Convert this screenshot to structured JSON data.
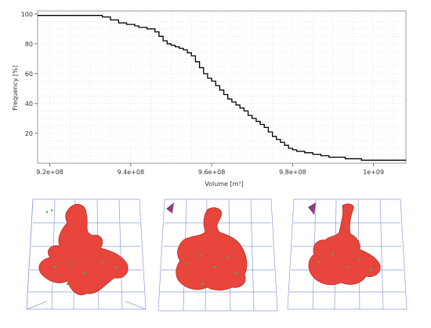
{
  "chart_data": {
    "type": "line",
    "line_style": "step",
    "ylabel": "Frequency [%]",
    "xlabel": "Volume [m³]",
    "x_ticks": [
      "9.2e+08",
      "9.4e+08",
      "9.6e+08",
      "9.8e+08",
      "1e+09"
    ],
    "x_tick_values": [
      920000000,
      940000000,
      960000000,
      980000000,
      1000000000
    ],
    "y_ticks": [
      "20",
      "40",
      "60",
      "80",
      "100"
    ],
    "y_tick_values": [
      20,
      40,
      60,
      80,
      100
    ],
    "xlim": [
      917000000,
      1008000000
    ],
    "ylim": [
      0,
      102
    ],
    "grid": true,
    "series": [
      {
        "color": "#000000",
        "x": [
          917000000,
          933000000,
          935000000,
          937000000,
          939000000,
          941000000,
          942000000,
          944000000,
          946000000,
          947000000,
          948000000,
          949000000,
          950000000,
          951000000,
          952000000,
          953000000,
          954000000,
          955000000,
          956000000,
          957000000,
          958000000,
          959000000,
          960000000,
          961000000,
          962000000,
          963000000,
          964000000,
          965000000,
          966000000,
          967000000,
          968000000,
          969000000,
          970000000,
          971000000,
          972000000,
          973000000,
          974000000,
          975000000,
          976000000,
          977000000,
          978000000,
          979000000,
          980000000,
          981000000,
          983000000,
          985000000,
          987000000,
          989000000,
          991000000,
          993000000,
          995000000,
          997000000,
          1000000000,
          1008000000
        ],
        "y": [
          99,
          98,
          96,
          94,
          93,
          92,
          91,
          90,
          88,
          85,
          82,
          80,
          79,
          78,
          77,
          76,
          74,
          72,
          68,
          64,
          60,
          57,
          55,
          52,
          49,
          46,
          43,
          41,
          39,
          37,
          35,
          32,
          30,
          28,
          26,
          24,
          21,
          18,
          16,
          14,
          12,
          10,
          9,
          8,
          7,
          6,
          5,
          4,
          4,
          3,
          3,
          2,
          2,
          2
        ]
      }
    ]
  },
  "renders": {
    "surface_color": "#e8463c",
    "box_color": "#8e9bd6",
    "marker_color": "#3fb84a"
  }
}
